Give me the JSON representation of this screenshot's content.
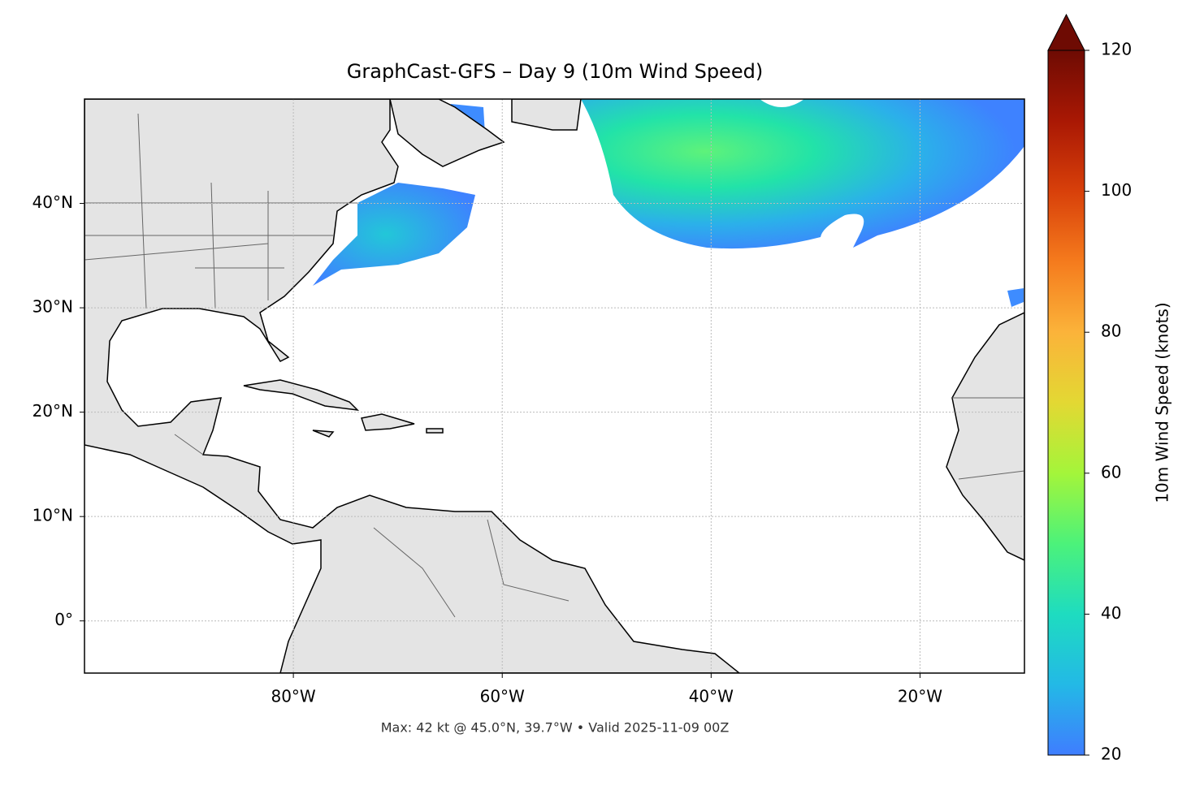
{
  "chart_data": {
    "type": "map",
    "title": "GraphCast-GFS – Day 9 (10m Wind Speed)",
    "footer": "Max: 42 kt @ 45.0°N, 39.7°W • Valid 2025-11-09 00Z",
    "xlim": [
      -100,
      -10
    ],
    "ylim": [
      -5,
      50
    ],
    "xticks": [
      {
        "value": -80,
        "label": "80°W"
      },
      {
        "value": -60,
        "label": "60°W"
      },
      {
        "value": -40,
        "label": "40°W"
      },
      {
        "value": -20,
        "label": "20°W"
      }
    ],
    "yticks": [
      {
        "value": 0,
        "label": "0°"
      },
      {
        "value": 10,
        "label": "10°N"
      },
      {
        "value": 20,
        "label": "20°N"
      },
      {
        "value": 30,
        "label": "30°N"
      },
      {
        "value": 40,
        "label": "40°N"
      }
    ],
    "grid": true,
    "colorbar": {
      "label": "10m Wind Speed (knots)",
      "lim": [
        20,
        120
      ],
      "ticks": [
        20,
        40,
        60,
        80,
        100,
        120
      ],
      "extend": "max",
      "colormap": [
        "#3f7dff",
        "#23b9e6",
        "#1edcc0",
        "#4cf27a",
        "#a4f53a",
        "#e3d833",
        "#fbb33a",
        "#f57b1d",
        "#d8400a",
        "#a91804",
        "#6e0b03"
      ]
    }
  }
}
